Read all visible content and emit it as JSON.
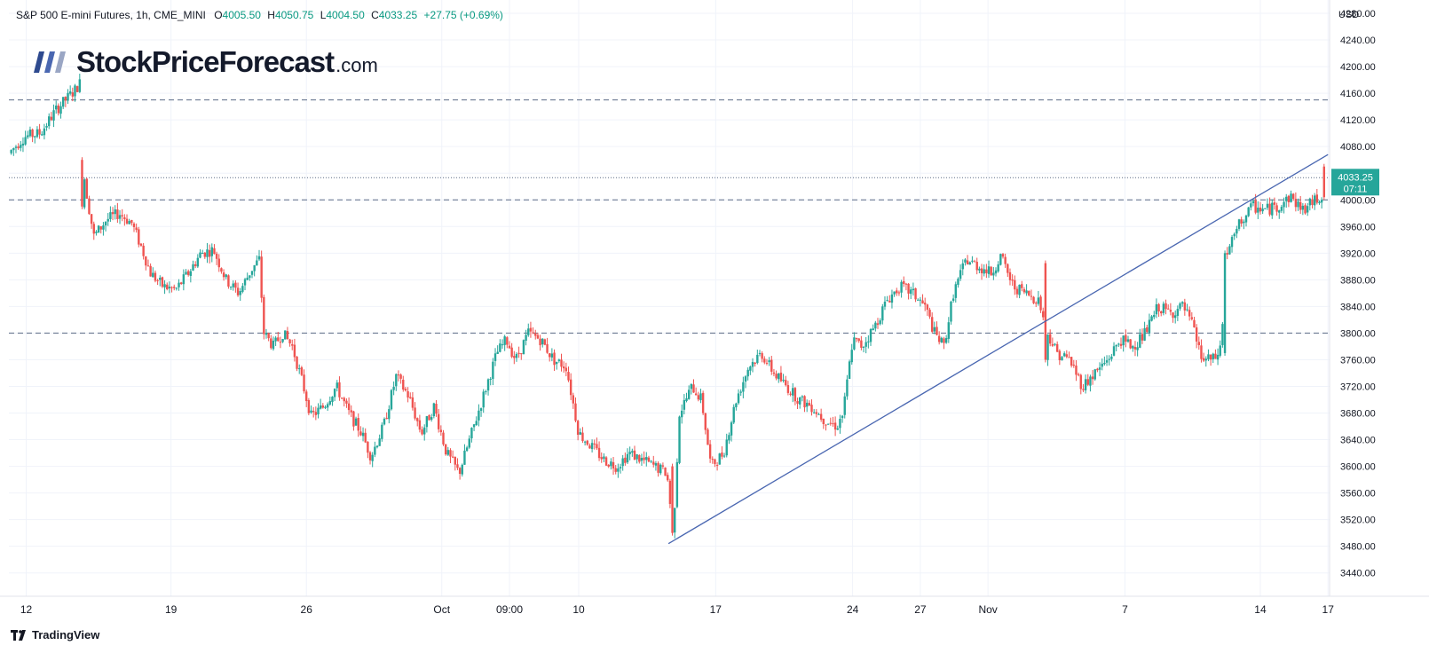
{
  "header": {
    "symbol": "S&P 500 E-mini Futures, 1h, CME_MINI",
    "open_key": "O",
    "open_val": "4005.50",
    "high_key": "H",
    "high_val": "4050.75",
    "low_key": "L",
    "low_val": "4004.50",
    "close_key": "C",
    "close_val": "4033.25",
    "change": "+27.75 (+0.69%)"
  },
  "logo": {
    "main": "StockPriceForecast",
    "suffix": ".com"
  },
  "footer": {
    "brand": "TradingView"
  },
  "price_tag": {
    "price": "4033.25",
    "countdown": "07:11"
  },
  "colors": {
    "up": "#26a69a",
    "down": "#ef5350",
    "trendline": "#4a67b1",
    "level": "#5b6b86",
    "tag": "#26a69a"
  },
  "chart_data": {
    "type": "candlestick",
    "currency": "USD",
    "ylim": [
      3405,
      4300
    ],
    "yticks": [
      3440,
      3480,
      3520,
      3560,
      3600,
      3640,
      3680,
      3720,
      3760,
      3800,
      3840,
      3880,
      3920,
      3960,
      4000,
      4040,
      4080,
      4120,
      4160,
      4200,
      4240,
      4280
    ],
    "ytick_labels": [
      "3440.00",
      "3480.00",
      "3520.00",
      "3560.00",
      "3600.00",
      "3640.00",
      "3680.00",
      "3720.00",
      "3760.00",
      "3800.00",
      "3840.00",
      "3880.00",
      "3920.00",
      "3960.00",
      "4000.00",
      "4040.00",
      "4080.00",
      "4120.00",
      "4160.00",
      "4200.00",
      "4240.00",
      "4280.00"
    ],
    "x_ticks": [
      {
        "label": "12",
        "t": 0.05
      },
      {
        "label": "19",
        "t": 4.65
      },
      {
        "label": "26",
        "t": 8.95
      },
      {
        "label": "Oct",
        "t": 13.25
      },
      {
        "label": "09:00",
        "t": 15.4
      },
      {
        "label": "10",
        "t": 17.6
      },
      {
        "label": "17",
        "t": 21.95
      },
      {
        "label": "24",
        "t": 26.3
      },
      {
        "label": "27",
        "t": 28.45
      },
      {
        "label": "Nov",
        "t": 30.6
      },
      {
        "label": "7",
        "t": 34.95
      },
      {
        "label": "14",
        "t": 39.25
      },
      {
        "label": "17",
        "t": 41.4
      }
    ],
    "t_range": [
      -0.5,
      41.45
    ],
    "levels": [
      4150,
      4000,
      3800
    ],
    "last_price": 4033.25,
    "trendline": {
      "from": [
        20.45,
        3484
      ],
      "to": [
        41.4,
        4068
      ]
    },
    "path": [
      [
        -0.5,
        4070
      ],
      [
        0,
        4095
      ],
      [
        0.5,
        4100
      ],
      [
        1,
        4135
      ],
      [
        1.6,
        4165
      ],
      [
        1.75,
        4175
      ],
      [
        1.82,
        4060
      ],
      [
        2,
        4000
      ],
      [
        2.2,
        3945
      ],
      [
        2.6,
        3970
      ],
      [
        3,
        3980
      ],
      [
        3.4,
        3965
      ],
      [
        3.7,
        3930
      ],
      [
        4,
        3890
      ],
      [
        4.4,
        3870
      ],
      [
        4.8,
        3865
      ],
      [
        5.2,
        3890
      ],
      [
        5.6,
        3920
      ],
      [
        6,
        3925
      ],
      [
        6.4,
        3880
      ],
      [
        6.8,
        3860
      ],
      [
        7.2,
        3895
      ],
      [
        7.45,
        3910
      ],
      [
        7.6,
        3800
      ],
      [
        7.9,
        3780
      ],
      [
        8.2,
        3800
      ],
      [
        8.5,
        3780
      ],
      [
        8.8,
        3730
      ],
      [
        9.1,
        3675
      ],
      [
        9.5,
        3690
      ],
      [
        9.9,
        3720
      ],
      [
        10.3,
        3680
      ],
      [
        10.7,
        3650
      ],
      [
        11,
        3615
      ],
      [
        11.4,
        3660
      ],
      [
        11.8,
        3735
      ],
      [
        12.2,
        3705
      ],
      [
        12.6,
        3650
      ],
      [
        13,
        3690
      ],
      [
        13.4,
        3620
      ],
      [
        13.8,
        3590
      ],
      [
        14.2,
        3650
      ],
      [
        14.6,
        3710
      ],
      [
        15,
        3770
      ],
      [
        15.3,
        3790
      ],
      [
        15.6,
        3760
      ],
      [
        16,
        3800
      ],
      [
        16.4,
        3790
      ],
      [
        16.8,
        3760
      ],
      [
        17.2,
        3750
      ],
      [
        17.6,
        3650
      ],
      [
        18,
        3630
      ],
      [
        18.4,
        3610
      ],
      [
        18.8,
        3600
      ],
      [
        19.2,
        3620
      ],
      [
        19.6,
        3610
      ],
      [
        20,
        3600
      ],
      [
        20.4,
        3590
      ],
      [
        20.6,
        3500
      ],
      [
        20.8,
        3680
      ],
      [
        21.2,
        3720
      ],
      [
        21.5,
        3700
      ],
      [
        21.8,
        3600
      ],
      [
        22.2,
        3620
      ],
      [
        22.6,
        3700
      ],
      [
        23,
        3750
      ],
      [
        23.4,
        3770
      ],
      [
        23.8,
        3740
      ],
      [
        24.2,
        3720
      ],
      [
        24.6,
        3700
      ],
      [
        25,
        3690
      ],
      [
        25.4,
        3670
      ],
      [
        25.8,
        3660
      ],
      [
        26,
        3680
      ],
      [
        26.3,
        3790
      ],
      [
        26.6,
        3780
      ],
      [
        27,
        3810
      ],
      [
        27.4,
        3850
      ],
      [
        27.8,
        3870
      ],
      [
        28.2,
        3860
      ],
      [
        28.6,
        3840
      ],
      [
        28.9,
        3800
      ],
      [
        29.2,
        3780
      ],
      [
        29.5,
        3860
      ],
      [
        29.9,
        3910
      ],
      [
        30.3,
        3900
      ],
      [
        30.7,
        3890
      ],
      [
        31,
        3915
      ],
      [
        31.4,
        3870
      ],
      [
        31.8,
        3860
      ],
      [
        32.2,
        3850
      ],
      [
        32.5,
        3800
      ],
      [
        32.8,
        3770
      ],
      [
        33.2,
        3760
      ],
      [
        33.6,
        3720
      ],
      [
        34,
        3740
      ],
      [
        34.4,
        3760
      ],
      [
        34.8,
        3790
      ],
      [
        35.2,
        3780
      ],
      [
        35.6,
        3800
      ],
      [
        36,
        3840
      ],
      [
        36.4,
        3830
      ],
      [
        36.8,
        3840
      ],
      [
        37.1,
        3810
      ],
      [
        37.4,
        3760
      ],
      [
        37.8,
        3760
      ],
      [
        38,
        3780
      ],
      [
        38.2,
        3920
      ],
      [
        38.6,
        3965
      ],
      [
        39,
        3990
      ],
      [
        39.4,
        3985
      ],
      [
        39.8,
        3990
      ],
      [
        40.2,
        4005
      ],
      [
        40.6,
        3985
      ],
      [
        41,
        4000
      ],
      [
        41.2,
        4006
      ],
      [
        41.3,
        4033
      ]
    ],
    "events": [
      [
        1.8,
        4060,
        3990
      ],
      [
        20.55,
        3600,
        3500
      ],
      [
        32.4,
        3905,
        3760
      ],
      [
        38.15,
        3770,
        3920
      ],
      [
        41.28,
        4050,
        4004
      ]
    ]
  }
}
